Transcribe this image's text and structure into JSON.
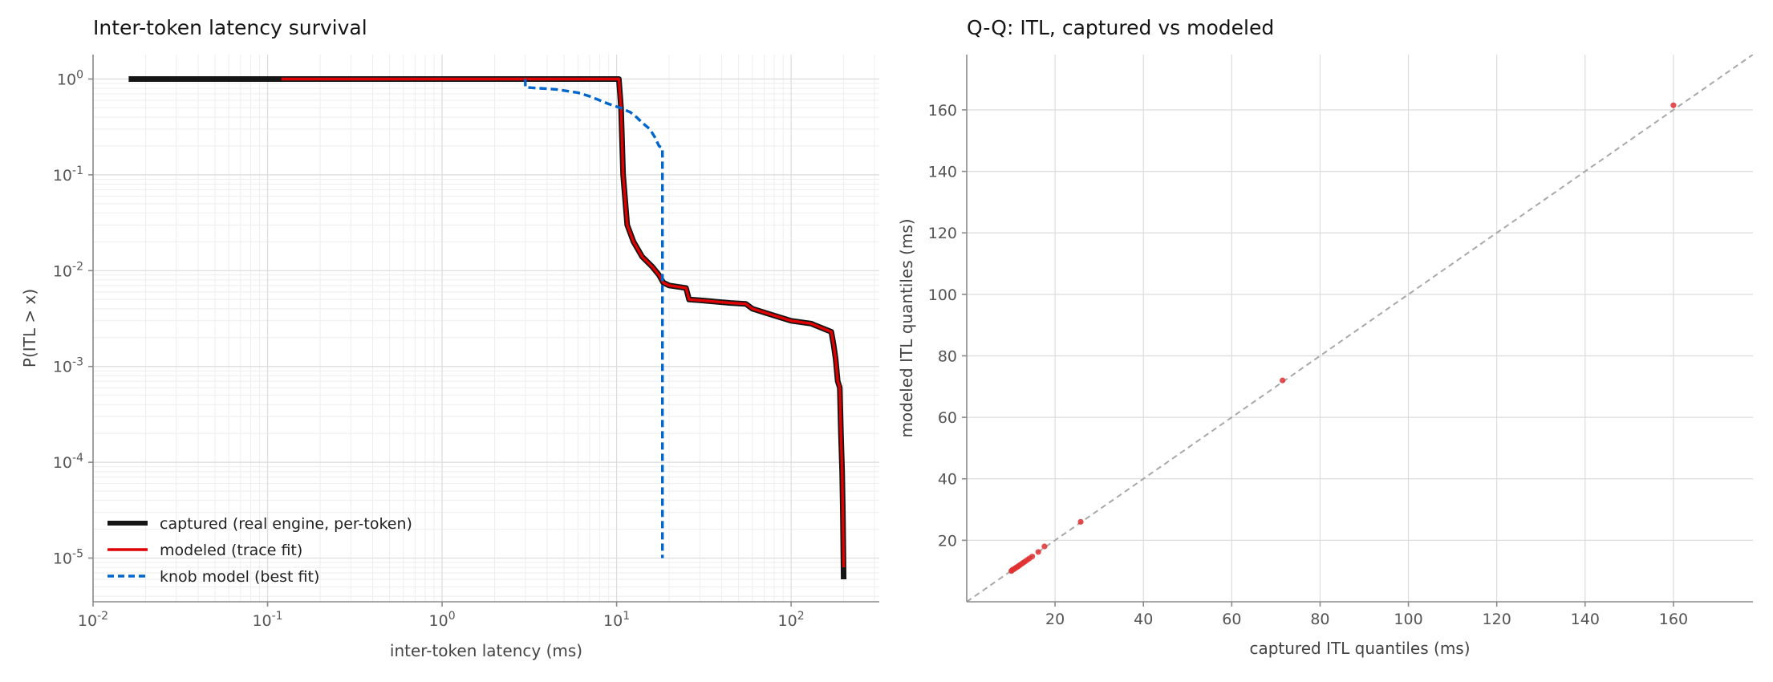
{
  "chart_data": [
    {
      "type": "line",
      "title": "Inter-token latency survival",
      "xlabel": "inter-token latency (ms)",
      "ylabel": "P(ITL > x)",
      "xscale": "log",
      "yscale": "log",
      "xlim": [
        0.01,
        320
      ],
      "ylim": [
        3.5e-06,
        1.8
      ],
      "xticks": [
        {
          "value": 0.01,
          "base": "10",
          "exp": "-2"
        },
        {
          "value": 0.1,
          "base": "10",
          "exp": "-1"
        },
        {
          "value": 1,
          "base": "10",
          "exp": "0"
        },
        {
          "value": 10,
          "base": "10",
          "exp": "1"
        },
        {
          "value": 100,
          "base": "10",
          "exp": "2"
        }
      ],
      "yticks": [
        {
          "value": 1,
          "base": "10",
          "exp": "0"
        },
        {
          "value": 0.1,
          "base": "10",
          "exp": "-1"
        },
        {
          "value": 0.01,
          "base": "10",
          "exp": "-2"
        },
        {
          "value": 0.001,
          "base": "10",
          "exp": "-3"
        },
        {
          "value": 0.0001,
          "base": "10",
          "exp": "-4"
        },
        {
          "value": 1e-05,
          "base": "10",
          "exp": "-5"
        }
      ],
      "grid": true,
      "legend_position": "bottom-left",
      "series": [
        {
          "name": "captured (real engine, per-token)",
          "color": "#151515",
          "style": "solid",
          "points": [
            [
              0.016,
              1
            ],
            [
              10.3,
              1
            ],
            [
              10.6,
              0.5
            ],
            [
              10.9,
              0.1
            ],
            [
              11.5,
              0.03
            ],
            [
              12.5,
              0.02
            ],
            [
              14,
              0.014
            ],
            [
              16,
              0.011
            ],
            [
              17.5,
              0.009
            ],
            [
              18.5,
              0.0075
            ],
            [
              20,
              0.007
            ],
            [
              25,
              0.0066
            ],
            [
              26,
              0.005
            ],
            [
              30,
              0.0049
            ],
            [
              45,
              0.0046
            ],
            [
              55,
              0.0045
            ],
            [
              60,
              0.004
            ],
            [
              80,
              0.0034
            ],
            [
              100,
              0.003
            ],
            [
              130,
              0.0028
            ],
            [
              160,
              0.0024
            ],
            [
              170,
              0.0023
            ],
            [
              175,
              0.0017
            ],
            [
              180,
              0.0012
            ],
            [
              185,
              0.0007
            ],
            [
              190,
              0.0006
            ],
            [
              193,
              0.0002
            ],
            [
              196,
              8e-05
            ],
            [
              198,
              3e-05
            ],
            [
              200,
              6e-06
            ]
          ]
        },
        {
          "name": "modeled (trace fit)",
          "color": "#e00000",
          "style": "solid",
          "points": [
            [
              0.12,
              1
            ],
            [
              10.3,
              1
            ],
            [
              10.6,
              0.5
            ],
            [
              10.9,
              0.1
            ],
            [
              11.5,
              0.03
            ],
            [
              12.5,
              0.02
            ],
            [
              14,
              0.014
            ],
            [
              16,
              0.011
            ],
            [
              17.5,
              0.009
            ],
            [
              18.5,
              0.0075
            ],
            [
              20,
              0.007
            ],
            [
              25,
              0.0066
            ],
            [
              26,
              0.005
            ],
            [
              30,
              0.0049
            ],
            [
              45,
              0.0046
            ],
            [
              55,
              0.0045
            ],
            [
              60,
              0.004
            ],
            [
              80,
              0.0034
            ],
            [
              100,
              0.003
            ],
            [
              130,
              0.0028
            ],
            [
              160,
              0.0024
            ],
            [
              170,
              0.0023
            ],
            [
              175,
              0.0017
            ],
            [
              180,
              0.0012
            ],
            [
              185,
              0.0007
            ],
            [
              190,
              0.0006
            ],
            [
              193,
              0.0002
            ],
            [
              196,
              8e-05
            ],
            [
              198,
              3e-05
            ],
            [
              200,
              8e-06
            ]
          ]
        },
        {
          "name": "knob model (best fit)",
          "color": "#0066cc",
          "style": "dashed",
          "points": [
            [
              3,
              1
            ],
            [
              3,
              0.82
            ],
            [
              4.5,
              0.78
            ],
            [
              6,
              0.72
            ],
            [
              7,
              0.66
            ],
            [
              8,
              0.6
            ],
            [
              9,
              0.55
            ],
            [
              10.5,
              0.5
            ],
            [
              12,
              0.45
            ],
            [
              13,
              0.4
            ],
            [
              14,
              0.35
            ],
            [
              15.5,
              0.3
            ],
            [
              16.5,
              0.25
            ],
            [
              17.5,
              0.2
            ],
            [
              18.3,
              0.19
            ],
            [
              18.3,
              1e-05
            ]
          ]
        }
      ]
    },
    {
      "type": "scatter",
      "title": "Q-Q: ITL, captured vs modeled",
      "xlabel": "captured ITL quantiles (ms)",
      "ylabel": "modeled ITL quantiles (ms)",
      "xlim": [
        0,
        178
      ],
      "ylim": [
        0,
        178
      ],
      "xticks": [
        20,
        40,
        60,
        80,
        100,
        120,
        140,
        160
      ],
      "yticks": [
        20,
        40,
        60,
        80,
        100,
        120,
        140,
        160
      ],
      "grid": true,
      "reference_line": "y = x",
      "series": [
        {
          "color": "#e03030",
          "points": [
            [
              10.1,
              10.0
            ],
            [
              10.3,
              10.3
            ],
            [
              10.5,
              10.5
            ],
            [
              10.8,
              10.7
            ],
            [
              11.1,
              11.0
            ],
            [
              11.4,
              11.3
            ],
            [
              11.7,
              11.6
            ],
            [
              12.0,
              11.9
            ],
            [
              12.4,
              12.3
            ],
            [
              12.8,
              12.7
            ],
            [
              13.2,
              13.1
            ],
            [
              13.7,
              13.6
            ],
            [
              14.2,
              14.1
            ],
            [
              14.8,
              14.7
            ],
            [
              16.2,
              16.2
            ],
            [
              17.6,
              18.0
            ],
            [
              25.8,
              26.0
            ],
            [
              71.5,
              72.0
            ],
            [
              160.0,
              161.5
            ]
          ]
        }
      ]
    }
  ]
}
